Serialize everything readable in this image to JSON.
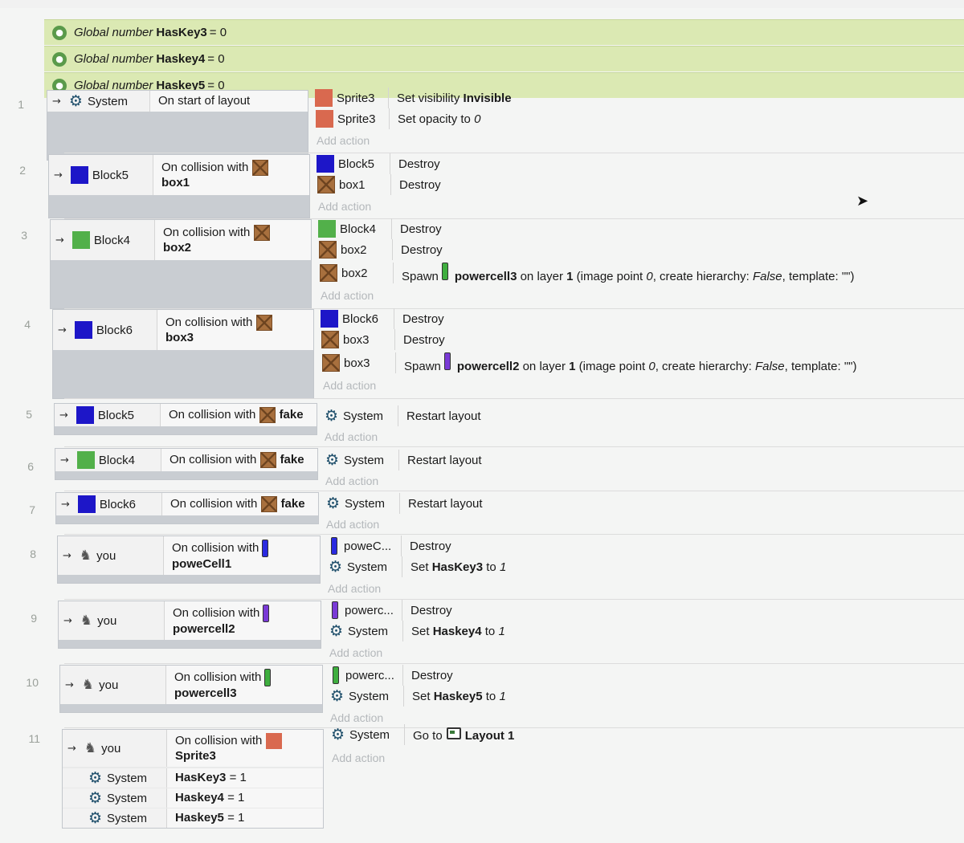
{
  "globals": [
    {
      "kw": "Global number",
      "name": "HasKey3",
      "rest": "= 0"
    },
    {
      "kw": "Global number",
      "name": "Haskey4",
      "rest": "= 0"
    },
    {
      "kw": "Global number",
      "name": "Haskey5",
      "rest": "= 0"
    }
  ],
  "add_action": "Add action",
  "events": {
    "e1": {
      "num": "1",
      "cond_obj": "System",
      "cond_text": "On start of layout",
      "a1_obj": "Sprite3",
      "a1_text_pre": "Set visibility",
      "a1_text_bold": "Invisible",
      "a2_obj": "Sprite3",
      "a2_text_pre": "Set opacity to",
      "a2_text_ital": "0"
    },
    "e2": {
      "num": "2",
      "cond_obj": "Block5",
      "cond_text": "On collision with",
      "cond_target": "box1",
      "a1_obj": "Block5",
      "a1_text": "Destroy",
      "a2_obj": "box1",
      "a2_text": "Destroy"
    },
    "e3": {
      "num": "3",
      "cond_obj": "Block4",
      "cond_text": "On collision with",
      "cond_target": "box2",
      "a1_obj": "Block4",
      "a1_text": "Destroy",
      "a2_obj": "box2",
      "a2_text": "Destroy",
      "a3_obj": "box2",
      "a3_pre": "Spawn",
      "a3_bold": "powercell3",
      "a3_mid": "on layer",
      "a3_layer": "1",
      "a3_rest1": "(image point",
      "a3_ip": "0",
      "a3_rest2": ", create hierarchy:",
      "a3_hier": "False",
      "a3_rest3": ", template: \"\")"
    },
    "e4": {
      "num": "4",
      "cond_obj": "Block6",
      "cond_text": "On collision with",
      "cond_target": "box3",
      "a1_obj": "Block6",
      "a1_text": "Destroy",
      "a2_obj": "box3",
      "a2_text": "Destroy",
      "a3_obj": "box3",
      "a3_pre": "Spawn",
      "a3_bold": "powercell2",
      "a3_mid": "on layer",
      "a3_layer": "1",
      "a3_rest1": "(image point",
      "a3_ip": "0",
      "a3_rest2": ", create hierarchy:",
      "a3_hier": "False",
      "a3_rest3": ", template: \"\")"
    },
    "e5": {
      "num": "5",
      "cond_obj": "Block5",
      "cond_text": "On collision with",
      "cond_target": "fake",
      "a1_obj": "System",
      "a1_text": "Restart layout"
    },
    "e6": {
      "num": "6",
      "cond_obj": "Block4",
      "cond_text": "On collision with",
      "cond_target": "fake",
      "a1_obj": "System",
      "a1_text": "Restart layout"
    },
    "e7": {
      "num": "7",
      "cond_obj": "Block6",
      "cond_text": "On collision with",
      "cond_target": "fake",
      "a1_obj": "System",
      "a1_text": "Restart layout"
    },
    "e8": {
      "num": "8",
      "cond_obj": "you",
      "cond_text": "On collision with",
      "cond_target": "poweCell1",
      "a1_obj": "poweC...",
      "a1_text": "Destroy",
      "a2_obj": "System",
      "a2_pre": "Set",
      "a2_bold": "HasKey3",
      "a2_mid": "to",
      "a2_val": "1"
    },
    "e9": {
      "num": "9",
      "cond_obj": "you",
      "cond_text": "On collision with",
      "cond_target": "powercell2",
      "a1_obj": "powerc...",
      "a1_text": "Destroy",
      "a2_obj": "System",
      "a2_pre": "Set",
      "a2_bold": "Haskey4",
      "a2_mid": "to",
      "a2_val": "1"
    },
    "e10": {
      "num": "10",
      "cond_obj": "you",
      "cond_text": "On collision with",
      "cond_target": "powercell3",
      "a1_obj": "powerc...",
      "a1_text": "Destroy",
      "a2_obj": "System",
      "a2_pre": "Set",
      "a2_bold": "Haskey5",
      "a2_mid": "to",
      "a2_val": "1"
    },
    "e11": {
      "num": "11",
      "cond_obj": "you",
      "cond_text": "On collision with",
      "cond_target": "Sprite3",
      "c2_obj": "System",
      "c2_var": "HasKey3",
      "c2_rest": "= 1",
      "c3_obj": "System",
      "c3_var": "Haskey4",
      "c3_rest": "= 1",
      "c4_obj": "System",
      "c4_var": "Haskey5",
      "c4_rest": "= 1",
      "a1_obj": "System",
      "a1_pre": "Go to",
      "a1_bold": "Layout 1"
    }
  }
}
